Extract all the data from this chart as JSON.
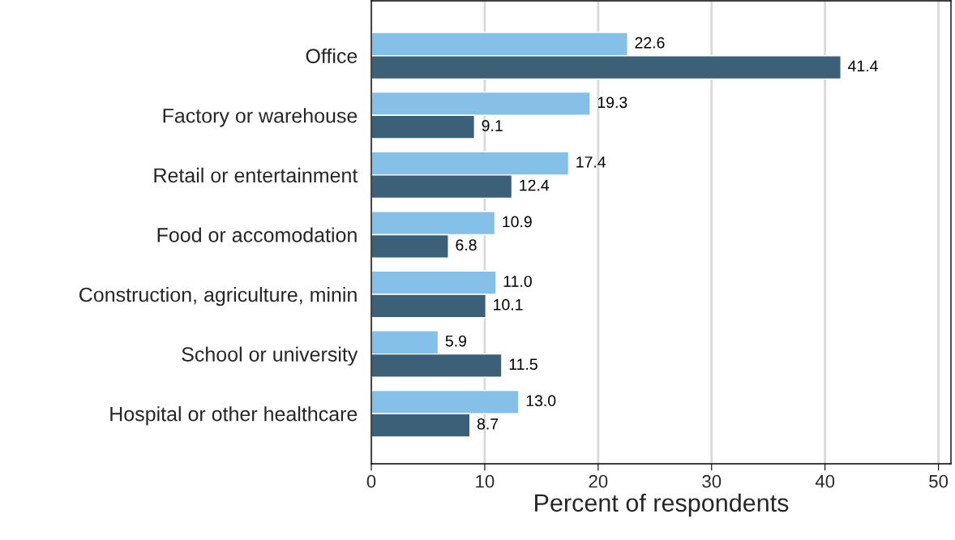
{
  "chart_data": {
    "type": "bar",
    "orientation": "horizontal",
    "categories": [
      "Office",
      "Factory or warehouse",
      "Retail or entertainment",
      "Food or accomodation",
      "Construction, agriculture, minin",
      "School or university",
      "Hospital or other healthcare"
    ],
    "series": [
      {
        "color": "#85c0e9",
        "values": [
          22.6,
          19.3,
          17.4,
          10.9,
          11.0,
          5.9,
          13.0
        ],
        "value_labels": [
          "22.6",
          "19.3",
          "17.4",
          "10.9",
          "11.0",
          "5.9",
          "13.0"
        ]
      },
      {
        "color": "#3d6079",
        "values": [
          41.4,
          9.1,
          12.4,
          6.8,
          10.1,
          11.5,
          8.7
        ],
        "value_labels": [
          "41.4",
          "9.1",
          "12.4",
          "6.8",
          "10.1",
          "11.5",
          "8.7"
        ]
      }
    ],
    "xlabel": "Percent of respondents",
    "xlim": [
      0,
      51.1
    ],
    "xticks": [
      0,
      10,
      20,
      30,
      40,
      50
    ],
    "grid": "x"
  }
}
